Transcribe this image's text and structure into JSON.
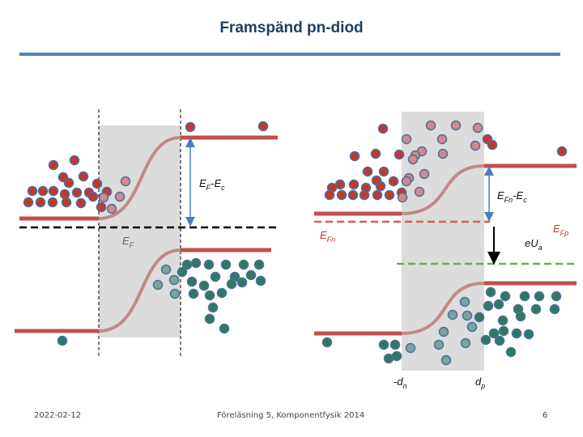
{
  "title": "Framspänd pn-diod",
  "footer": {
    "date": "2022-02-12",
    "course": "Föreläsning 5, Komponentfysik 2014",
    "page": "6"
  },
  "colors": {
    "band": "#c0504d",
    "band_transition": "#c08a88",
    "electron": "#c0392b",
    "electron_faded": "#d08a88",
    "hole": "#2e7a5a",
    "hole_faded": "#7aa595",
    "particle_ring": "#4a6fa5",
    "depletion": "#dcdcdc",
    "quasi_fermi_n": "#e05a50",
    "quasi_fermi_p": "#6ab04c",
    "arrow": "#4a7ebb"
  },
  "left_diagram": {
    "label_ef_ec": {
      "a": "E",
      "a_sub": "F",
      "b": "-E",
      "b_sub": "c"
    },
    "label_ef": {
      "a": "E",
      "a_sub": "F"
    }
  },
  "right_diagram": {
    "label_efn_ec": {
      "a": "E",
      "a_sub": "Fn",
      "b": "-E",
      "b_sub": "c"
    },
    "label_efn": {
      "a": "E",
      "a_sub": "Fn"
    },
    "label_efp": {
      "a": "E",
      "a_sub": "Fp"
    },
    "label_eua": {
      "a": "eU",
      "a_sub": "a"
    },
    "label_dn": {
      "a": "-d",
      "a_sub": "n"
    },
    "label_dp": {
      "a": "d",
      "a_sub": "p"
    }
  }
}
